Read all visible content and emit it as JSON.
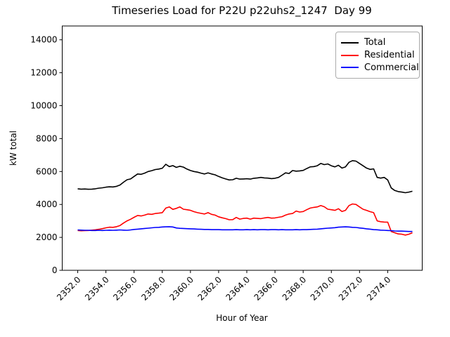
{
  "figure": {
    "title": "Timeseries Load for P22U p22uhs2_1247  Day 99",
    "xlabel": "Hour of Year",
    "ylabel": "kW total"
  },
  "chart_data": {
    "type": "line",
    "title": "Timeseries Load for P22U p22uhs2_1247  Day 99",
    "xlabel": "Hour of Year",
    "ylabel": "kW total",
    "grid": false,
    "xlim": [
      2350.9,
      2376.45
    ],
    "ylim": [
      0,
      14840
    ],
    "x_ticks": [
      2352,
      2354,
      2356,
      2358,
      2360,
      2362,
      2364,
      2366,
      2368,
      2370,
      2372,
      2374
    ],
    "x_tick_labels": [
      "2352.0",
      "2354.0",
      "2356.0",
      "2358.0",
      "2360.0",
      "2362.0",
      "2364.0",
      "2366.0",
      "2368.0",
      "2370.0",
      "2372.0",
      "2374.0"
    ],
    "y_ticks": [
      0,
      2000,
      4000,
      6000,
      8000,
      10000,
      12000,
      14000
    ],
    "legend": {
      "position": "upper right",
      "entries": [
        {
          "label": "Total",
          "color": "#000000"
        },
        {
          "label": "Residential",
          "color": "#ff0000"
        },
        {
          "label": "Commercial",
          "color": "#0000ff"
        }
      ]
    },
    "x": [
      2352.0,
      2352.25,
      2352.5,
      2352.75,
      2353.0,
      2353.25,
      2353.5,
      2353.75,
      2354.0,
      2354.25,
      2354.5,
      2354.75,
      2355.0,
      2355.25,
      2355.5,
      2355.75,
      2356.0,
      2356.25,
      2356.5,
      2356.75,
      2357.0,
      2357.25,
      2357.5,
      2357.75,
      2358.0,
      2358.25,
      2358.5,
      2358.75,
      2359.0,
      2359.25,
      2359.5,
      2359.75,
      2360.0,
      2360.25,
      2360.5,
      2360.75,
      2361.0,
      2361.25,
      2361.5,
      2361.75,
      2362.0,
      2362.25,
      2362.5,
      2362.75,
      2363.0,
      2363.25,
      2363.5,
      2363.75,
      2364.0,
      2364.25,
      2364.5,
      2364.75,
      2365.0,
      2365.25,
      2365.5,
      2365.75,
      2366.0,
      2366.25,
      2366.5,
      2366.75,
      2367.0,
      2367.25,
      2367.5,
      2367.75,
      2368.0,
      2368.25,
      2368.5,
      2368.75,
      2369.0,
      2369.25,
      2369.5,
      2369.75,
      2370.0,
      2370.25,
      2370.5,
      2370.75,
      2371.0,
      2371.25,
      2371.5,
      2371.75,
      2372.0,
      2372.25,
      2372.5,
      2372.75,
      2373.0,
      2373.25,
      2373.5,
      2373.75,
      2374.0,
      2374.25,
      2374.5,
      2374.75,
      2375.0,
      2375.25,
      2375.5,
      2375.75
    ],
    "series": [
      {
        "name": "Total",
        "color": "#000000",
        "values": [
          4950,
          4930,
          4940,
          4920,
          4930,
          4950,
          4990,
          5010,
          5050,
          5070,
          5060,
          5100,
          5180,
          5350,
          5500,
          5550,
          5700,
          5850,
          5830,
          5900,
          6000,
          6050,
          6120,
          6150,
          6200,
          6440,
          6300,
          6360,
          6250,
          6320,
          6270,
          6150,
          6060,
          6000,
          5960,
          5900,
          5850,
          5920,
          5850,
          5800,
          5700,
          5620,
          5550,
          5490,
          5500,
          5590,
          5540,
          5550,
          5560,
          5540,
          5590,
          5610,
          5640,
          5610,
          5600,
          5570,
          5590,
          5640,
          5780,
          5920,
          5880,
          6060,
          6020,
          6040,
          6070,
          6180,
          6280,
          6300,
          6350,
          6490,
          6420,
          6460,
          6350,
          6280,
          6380,
          6210,
          6280,
          6560,
          6660,
          6630,
          6490,
          6350,
          6210,
          6130,
          6160,
          5640,
          5600,
          5640,
          5490,
          5000,
          4850,
          4780,
          4750,
          4710,
          4750,
          4800
        ]
      },
      {
        "name": "Residential",
        "color": "#ff0000",
        "values": [
          2420,
          2400,
          2410,
          2420,
          2440,
          2460,
          2490,
          2530,
          2580,
          2620,
          2610,
          2650,
          2720,
          2870,
          3000,
          3100,
          3220,
          3330,
          3300,
          3350,
          3420,
          3400,
          3450,
          3470,
          3500,
          3780,
          3850,
          3700,
          3760,
          3850,
          3710,
          3680,
          3640,
          3560,
          3500,
          3460,
          3420,
          3500,
          3400,
          3350,
          3250,
          3190,
          3140,
          3070,
          3080,
          3210,
          3110,
          3150,
          3170,
          3110,
          3170,
          3150,
          3140,
          3180,
          3210,
          3170,
          3180,
          3220,
          3260,
          3350,
          3420,
          3450,
          3600,
          3540,
          3570,
          3680,
          3780,
          3820,
          3850,
          3930,
          3860,
          3710,
          3680,
          3640,
          3740,
          3570,
          3640,
          3930,
          4030,
          4000,
          3850,
          3710,
          3640,
          3560,
          3500,
          3000,
          2950,
          2930,
          2925,
          2360,
          2280,
          2210,
          2190,
          2140,
          2190,
          2280
        ]
      },
      {
        "name": "Commercial",
        "color": "#0000ff",
        "values": [
          2450,
          2440,
          2430,
          2430,
          2420,
          2420,
          2430,
          2420,
          2430,
          2440,
          2430,
          2440,
          2450,
          2440,
          2430,
          2450,
          2480,
          2500,
          2520,
          2540,
          2560,
          2580,
          2600,
          2610,
          2630,
          2640,
          2650,
          2630,
          2570,
          2550,
          2540,
          2530,
          2520,
          2510,
          2500,
          2490,
          2480,
          2480,
          2470,
          2470,
          2470,
          2460,
          2460,
          2460,
          2460,
          2470,
          2460,
          2460,
          2470,
          2460,
          2470,
          2460,
          2470,
          2470,
          2460,
          2470,
          2470,
          2460,
          2470,
          2460,
          2460,
          2460,
          2470,
          2460,
          2470,
          2470,
          2480,
          2490,
          2500,
          2520,
          2540,
          2560,
          2570,
          2590,
          2620,
          2630,
          2640,
          2630,
          2610,
          2600,
          2570,
          2550,
          2520,
          2500,
          2470,
          2460,
          2440,
          2430,
          2420,
          2410,
          2390,
          2380,
          2380,
          2370,
          2360,
          2360
        ]
      }
    ]
  }
}
